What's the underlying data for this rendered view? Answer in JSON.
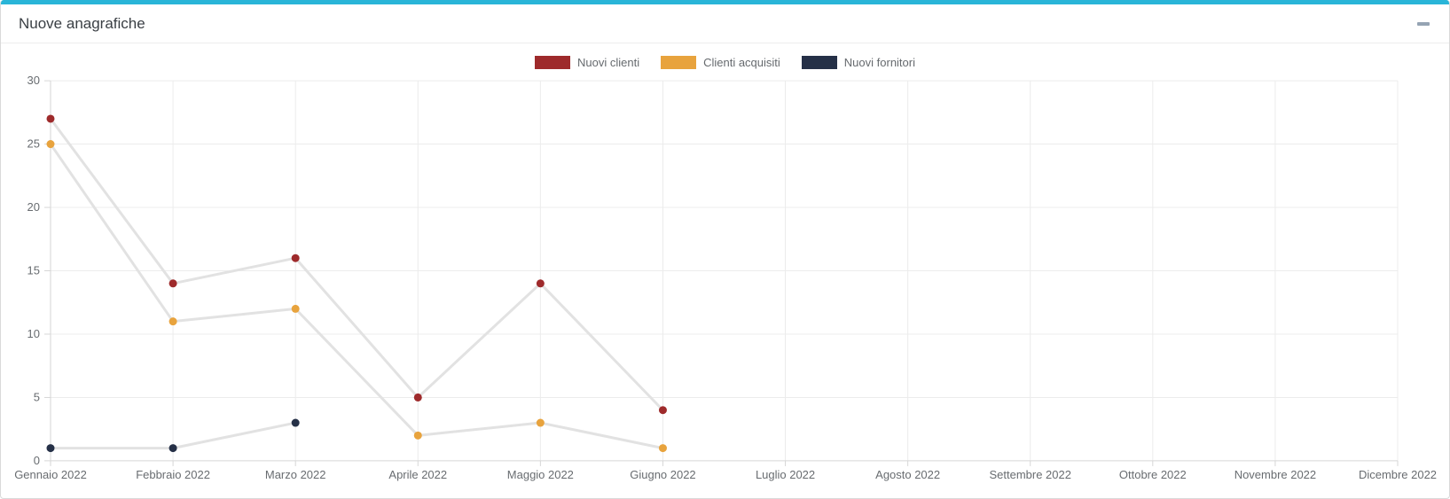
{
  "card": {
    "title": "Nuove anagrafiche",
    "accent_color": "#29b5d8",
    "minimize_icon": "minus"
  },
  "chart_data": {
    "type": "line",
    "title": "Nuove anagrafiche",
    "categories": [
      "Gennaio 2022",
      "Febbraio 2022",
      "Marzo 2022",
      "Aprile 2022",
      "Maggio 2022",
      "Giugno 2022",
      "Luglio 2022",
      "Agosto 2022",
      "Settembre 2022",
      "Ottobre 2022",
      "Novembre 2022",
      "Dicembre 2022"
    ],
    "y_ticks": [
      0,
      5,
      10,
      15,
      20,
      25,
      30
    ],
    "ylim": [
      0,
      30
    ],
    "grid": true,
    "legend_position": "top-center",
    "line_color": "#e2e2e2",
    "grid_color": "#ececec",
    "axis_color": "#d6d6d6",
    "label_color": "#686c70",
    "series": [
      {
        "name": "Nuovi clienti",
        "color": "#9e2a2b",
        "values": [
          27,
          14,
          16,
          5,
          14,
          4
        ]
      },
      {
        "name": "Clienti acquisiti",
        "color": "#e8a33d",
        "values": [
          25,
          11,
          12,
          2,
          3,
          1
        ]
      },
      {
        "name": "Nuovi fornitori",
        "color": "#253047",
        "values": [
          1,
          1,
          3
        ]
      }
    ]
  }
}
